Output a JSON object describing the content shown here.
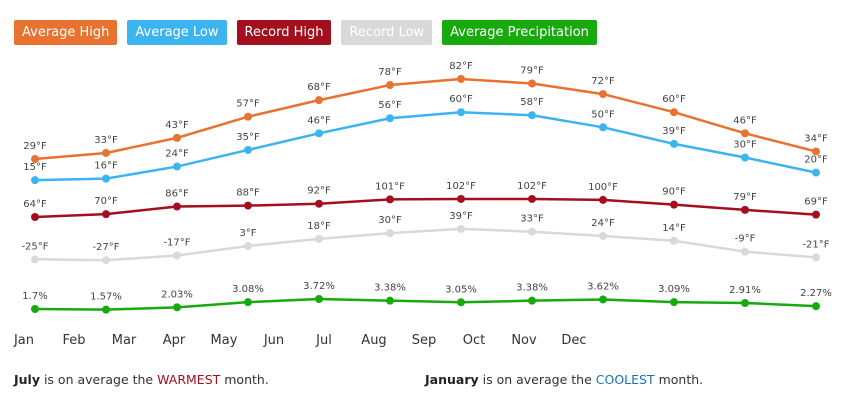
{
  "chart_data": {
    "type": "line",
    "categories": [
      "Jan",
      "Feb",
      "Mar",
      "Apr",
      "May",
      "Jun",
      "Jul",
      "Aug",
      "Sep",
      "Oct",
      "Nov",
      "Dec"
    ],
    "series": [
      {
        "name": "Average High",
        "color": "#e8722f",
        "values": [
          29,
          33,
          43,
          57,
          68,
          78,
          82,
          79,
          72,
          60,
          46,
          34
        ],
        "value_labels": [
          "29°F",
          "33°F",
          "43°F",
          "57°F",
          "68°F",
          "78°F",
          "82°F",
          "79°F",
          "72°F",
          "60°F",
          "46°F",
          "34°F"
        ]
      },
      {
        "name": "Average Low",
        "color": "#3cb4ef",
        "values": [
          15,
          16,
          24,
          35,
          46,
          56,
          60,
          58,
          50,
          39,
          30,
          20
        ],
        "value_labels": [
          "15°F",
          "16°F",
          "24°F",
          "35°F",
          "46°F",
          "56°F",
          "60°F",
          "58°F",
          "50°F",
          "39°F",
          "30°F",
          "20°F"
        ]
      },
      {
        "name": "Record High",
        "color": "#a40f1e",
        "values": [
          64,
          70,
          86,
          88,
          92,
          101,
          102,
          102,
          100,
          90,
          79,
          69
        ],
        "value_labels": [
          "64°F",
          "70°F",
          "86°F",
          "88°F",
          "92°F",
          "101°F",
          "102°F",
          "102°F",
          "100°F",
          "90°F",
          "79°F",
          "69°F"
        ]
      },
      {
        "name": "Record Low",
        "color": "#d9d9d9",
        "values": [
          -25,
          -27,
          -17,
          3,
          18,
          30,
          39,
          33,
          24,
          14,
          -9,
          -21
        ],
        "value_labels": [
          "-25°F",
          "-27°F",
          "-17°F",
          "3°F",
          "18°F",
          "30°F",
          "39°F",
          "33°F",
          "24°F",
          "14°F",
          "-9°F",
          "-21°F"
        ]
      },
      {
        "name": "Average Precipitation",
        "color": "#18a90d",
        "values": [
          1.7,
          1.57,
          2.03,
          3.08,
          3.72,
          3.38,
          3.05,
          3.38,
          3.62,
          3.09,
          2.91,
          2.27
        ],
        "value_labels": [
          "1.7%",
          "1.57%",
          "2.03%",
          "3.08%",
          "3.72%",
          "3.38%",
          "3.05%",
          "3.38%",
          "3.62%",
          "3.09%",
          "2.91%",
          "2.27%"
        ]
      }
    ]
  },
  "footer": [
    {
      "month": "July",
      "text": " is on average the ",
      "word": "WARMEST",
      "end": " month.",
      "color": "#a40f1e"
    },
    {
      "month": "January",
      "text": " is on average the ",
      "word": "COOLEST",
      "end": " month.",
      "color": "#1f6fb5"
    }
  ]
}
